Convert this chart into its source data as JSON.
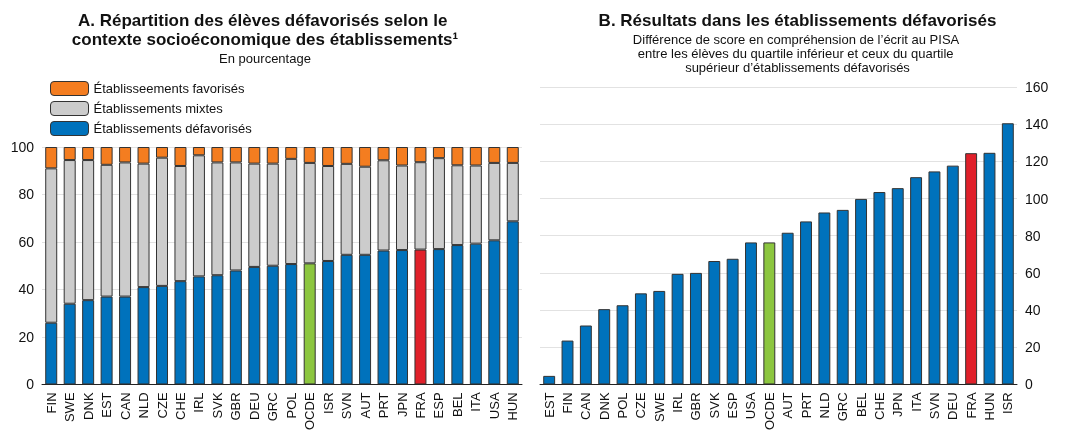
{
  "chart_data": [
    {
      "type": "bar",
      "title": "A. Répartition des élèves défavorisés selon le contexte socioéconomique des établissements¹",
      "subtitle": "En pourcentage",
      "categories": [
        "FIN",
        "SWE",
        "DNK",
        "EST",
        "CAN",
        "NLD",
        "CZE",
        "CHE",
        "IRL",
        "SVK",
        "GBR",
        "DEU",
        "GRC",
        "POL",
        "OCDE",
        "ISR",
        "SVN",
        "AUT",
        "PRT",
        "JPN",
        "FRA",
        "ESP",
        "BEL",
        "ITA",
        "USA",
        "HUN"
      ],
      "stacked": true,
      "series": [
        {
          "name": "Établissements défavorisés",
          "color": "#0072bc",
          "colors": [
            "#0072bc",
            "#0072bc",
            "#0072bc",
            "#0072bc",
            "#0072bc",
            "#0072bc",
            "#0072bc",
            "#0072bc",
            "#0072bc",
            "#0072bc",
            "#0072bc",
            "#0072bc",
            "#0072bc",
            "#0072bc",
            "#8cc63f",
            "#0072bc",
            "#0072bc",
            "#0072bc",
            "#0072bc",
            "#0072bc",
            "#e0202a",
            "#0072bc",
            "#0072bc",
            "#0072bc",
            "#0072bc",
            "#0072bc"
          ],
          "values": [
            26,
            34,
            35.5,
            37,
            37,
            41,
            41.5,
            43.5,
            45.5,
            46,
            48,
            49.5,
            50,
            50.7,
            51,
            52,
            54.6,
            54.6,
            56.4,
            56.6,
            56.8,
            57,
            58.7,
            59.3,
            60.7,
            68.7
          ]
        },
        {
          "name": "Établissements mixtes",
          "color": "#cccccc",
          "values": [
            65,
            60.5,
            59,
            55.5,
            56.5,
            52,
            54,
            48.5,
            51,
            47.5,
            45.5,
            43.5,
            43,
            44.3,
            42.3,
            40,
            38.3,
            37.1,
            38,
            35.6,
            36.8,
            38.3,
            33.6,
            32.9,
            32.6,
            24.6
          ]
        },
        {
          "name": "Établisseements favorisés",
          "color": "#f47d20",
          "values": [
            9,
            5.5,
            5.5,
            7.5,
            6.5,
            7,
            4.5,
            8,
            3.5,
            6.5,
            6.5,
            7,
            7,
            5,
            6.7,
            8,
            7.1,
            8.3,
            5.6,
            7.8,
            6.4,
            4.7,
            7.7,
            7.8,
            6.7,
            6.7
          ]
        }
      ],
      "ylim": [
        0,
        100
      ],
      "yticks": [
        0,
        20,
        40,
        60,
        80,
        100
      ],
      "grid": "y",
      "legend": "top left"
    },
    {
      "type": "bar",
      "title": "B. Résultats dans les établissements défavorisés",
      "subtitle": "Différence de score en compréhension de l’écrit au PISA entre les élèves du quartile inférieur et ceux du quartile supérieur d’établissements défavorisés",
      "categories": [
        "EST",
        "FIN",
        "CAN",
        "DNK",
        "POL",
        "CZE",
        "SWE",
        "IRL",
        "GBR",
        "SVK",
        "ESP",
        "USA",
        "OCDE",
        "AUT",
        "PRT",
        "NLD",
        "GRC",
        "BEL",
        "CHE",
        "JPN",
        "ITA",
        "SVN",
        "DEU",
        "FRA",
        "HUN",
        "ISR"
      ],
      "series": [
        {
          "color": "#0072bc",
          "axis": "y2",
          "colors": [
            "#0072bc",
            "#0072bc",
            "#0072bc",
            "#0072bc",
            "#0072bc",
            "#0072bc",
            "#0072bc",
            "#0072bc",
            "#0072bc",
            "#0072bc",
            "#0072bc",
            "#0072bc",
            "#8cc63f",
            "#0072bc",
            "#0072bc",
            "#0072bc",
            "#0072bc",
            "#0072bc",
            "#0072bc",
            "#0072bc",
            "#0072bc",
            "#0072bc",
            "#0072bc",
            "#e0202a",
            "#0072bc",
            "#0072bc"
          ],
          "values": [
            4.6,
            23.6,
            31.7,
            40.5,
            42.6,
            49,
            50.3,
            59.5,
            60,
            66.4,
            67.6,
            76.4,
            76.4,
            81.6,
            87.7,
            92.5,
            93.9,
            99.8,
            103.5,
            105.6,
            111.5,
            114.6,
            117.7,
            124.4,
            124.6,
            140.5
          ]
        }
      ],
      "y2lim": [
        0,
        160
      ],
      "y2ticks": [
        0,
        20,
        40,
        60,
        80,
        100,
        120,
        140,
        160
      ],
      "grid": "y"
    }
  ]
}
